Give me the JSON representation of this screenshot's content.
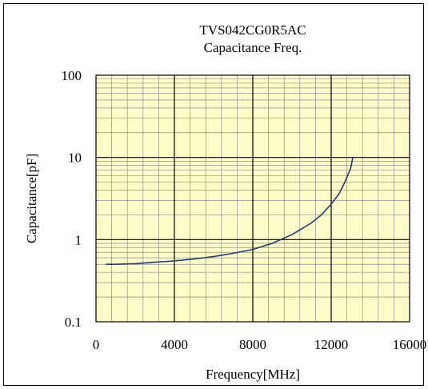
{
  "chart_data": {
    "type": "line",
    "title": "TVS042CG0R5AC",
    "subtitle": "Capacitance Freq.",
    "xlabel": "Frequency[MHz]",
    "ylabel": "Capacitance[pF]",
    "xlim": [
      0,
      16000
    ],
    "ylim": [
      0.1,
      100
    ],
    "yscale": "log",
    "x_ticks": [
      0,
      4000,
      8000,
      12000,
      16000
    ],
    "x_tick_labels": [
      "0",
      "4000",
      "8000",
      "12000",
      "16000"
    ],
    "y_ticks": [
      0.1,
      1,
      10,
      100
    ],
    "y_tick_labels": [
      "0.1",
      "1",
      "10",
      "100"
    ],
    "grid": true,
    "plot_background": "#fefcc8",
    "line_color": "#1f3b6e",
    "series": [
      {
        "x": [
          500,
          1000,
          2000,
          3000,
          4000,
          5000,
          6000,
          7000,
          8000,
          9000,
          10000,
          11000,
          11500,
          12000,
          12400,
          12700,
          13000,
          13100
        ],
        "y": [
          0.5,
          0.5,
          0.51,
          0.53,
          0.55,
          0.58,
          0.62,
          0.68,
          0.76,
          0.9,
          1.15,
          1.6,
          2.0,
          2.7,
          3.6,
          5.0,
          7.5,
          9.9
        ]
      }
    ]
  }
}
